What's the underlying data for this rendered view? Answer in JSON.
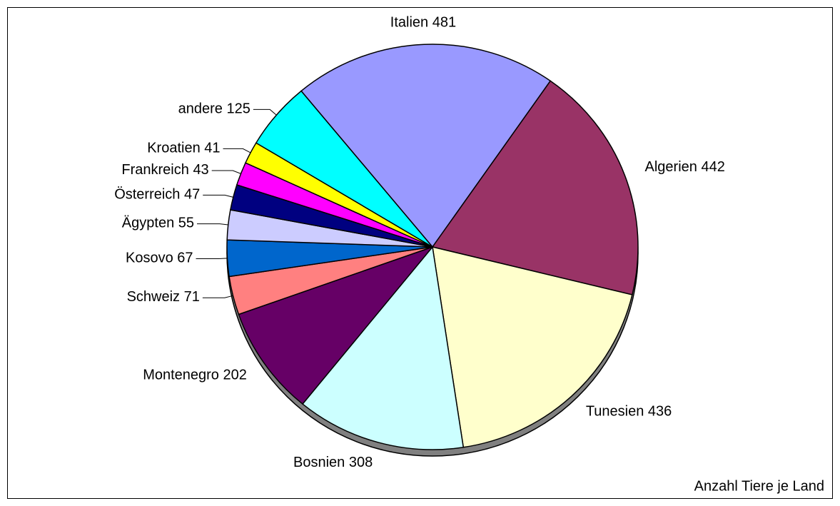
{
  "chart_data": {
    "type": "pie",
    "categories": [
      "Italien",
      "Algerien",
      "Tunesien",
      "Bosnien",
      "Montenegro",
      "Schweiz",
      "Kosovo",
      "Ägypten",
      "Österreich",
      "Frankreich",
      "Kroatien",
      "andere"
    ],
    "values": [
      481,
      442,
      436,
      308,
      202,
      71,
      67,
      55,
      47,
      43,
      41,
      125
    ],
    "colors": [
      "#9999ff",
      "#993366",
      "#ffffcc",
      "#ccffff",
      "#660066",
      "#ff8080",
      "#0066cc",
      "#ccccff",
      "#000080",
      "#ff00ff",
      "#ffff00",
      "#00ffff"
    ],
    "caption": "Anzahl Tiere je Land"
  }
}
